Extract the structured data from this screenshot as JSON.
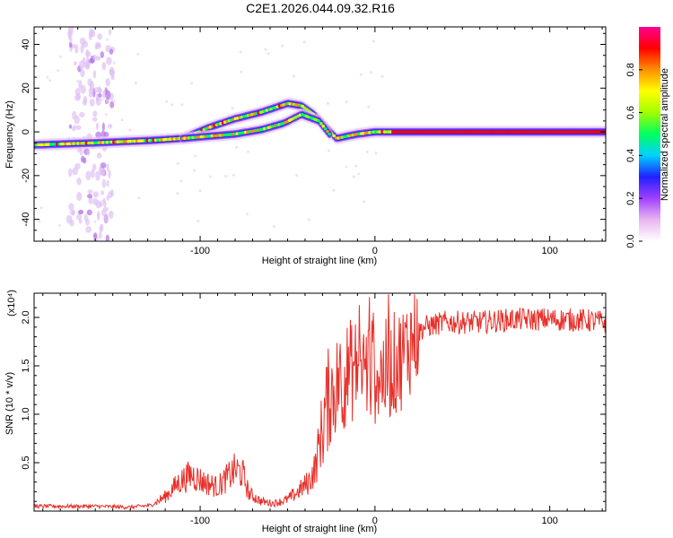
{
  "title": "C2E1.2026.044.09.32.R16",
  "chart_data": [
    {
      "type": "heatmap",
      "xlabel": "Height of straight line (km)",
      "ylabel": "Frequency (Hz)",
      "xlim": [
        -195,
        132
      ],
      "ylim": [
        -50,
        48
      ],
      "xticks": [
        -100,
        0,
        100
      ],
      "yticks": [
        -40,
        -20,
        0,
        20,
        40
      ],
      "colorbar": {
        "label": "Normalized spectral amplitude",
        "range": [
          0,
          1
        ],
        "ticks": [
          0.0,
          0.2,
          0.4,
          0.6,
          0.8
        ],
        "tick_labels": [
          "0.0",
          "0.2",
          "0.4",
          "0.6",
          "0.8"
        ],
        "colors": [
          "#ffffff",
          "#e8b6f0",
          "#a040ff",
          "#2020ff",
          "#00d0ff",
          "#00ff60",
          "#a0ff00",
          "#ffff00",
          "#ff9000",
          "#ff0000",
          "#ff0090"
        ]
      },
      "ridges": [
        {
          "name": "main",
          "points": [
            [
              -195,
              -6
            ],
            [
              -160,
              -5
            ],
            [
              -130,
              -4
            ],
            [
              -110,
              -3
            ],
            [
              -95,
              2
            ],
            [
              -80,
              6
            ],
            [
              -65,
              9
            ],
            [
              -50,
              13
            ],
            [
              -42,
              12
            ],
            [
              -35,
              8
            ],
            [
              -28,
              2
            ],
            [
              -22,
              -3
            ],
            [
              -10,
              -1
            ],
            [
              0,
              0
            ],
            [
              40,
              0
            ],
            [
              80,
              0
            ],
            [
              132,
              0
            ]
          ]
        },
        {
          "name": "lower-branch",
          "points": [
            [
              -110,
              -3
            ],
            [
              -95,
              -2
            ],
            [
              -80,
              -1
            ],
            [
              -65,
              1
            ],
            [
              -52,
              4
            ],
            [
              -42,
              8
            ],
            [
              -32,
              5
            ],
            [
              -25,
              -2
            ]
          ]
        }
      ],
      "noise_band": {
        "x": [
          -175,
          -150
        ],
        "y": [
          -50,
          48
        ]
      }
    },
    {
      "type": "line",
      "xlabel": "Height of straight line (km)",
      "ylabel": "SNR (10 * v/v)",
      "scale_label": "(x10⁴)",
      "xlim": [
        -195,
        132
      ],
      "ylim": [
        0,
        2.25
      ],
      "xticks": [
        -100,
        0,
        100
      ],
      "yticks": [
        0.5,
        1.0,
        1.5,
        2.0
      ],
      "ytick_labels": [
        "0.5",
        "1.0",
        "1.5",
        "2.0"
      ],
      "series": [
        {
          "color": "#e8302a",
          "envelope": [
            [
              -195,
              0.05
            ],
            [
              -180,
              0.05
            ],
            [
              -160,
              0.05
            ],
            [
              -140,
              0.04
            ],
            [
              -128,
              0.06
            ],
            [
              -120,
              0.15
            ],
            [
              -112,
              0.3
            ],
            [
              -105,
              0.38
            ],
            [
              -98,
              0.3
            ],
            [
              -90,
              0.25
            ],
            [
              -80,
              0.42
            ],
            [
              -76,
              0.4
            ],
            [
              -72,
              0.18
            ],
            [
              -65,
              0.1
            ],
            [
              -58,
              0.08
            ],
            [
              -50,
              0.12
            ],
            [
              -44,
              0.2
            ],
            [
              -38,
              0.3
            ],
            [
              -34,
              0.45
            ],
            [
              -30,
              0.9
            ],
            [
              -26,
              1.2
            ],
            [
              -20,
              1.35
            ],
            [
              -14,
              1.45
            ],
            [
              -8,
              1.5
            ],
            [
              -2,
              1.45
            ],
            [
              4,
              1.4
            ],
            [
              10,
              1.5
            ],
            [
              16,
              1.6
            ],
            [
              22,
              1.8
            ],
            [
              28,
              1.9
            ],
            [
              40,
              1.95
            ],
            [
              60,
              1.95
            ],
            [
              80,
              1.98
            ],
            [
              100,
              1.98
            ],
            [
              120,
              1.97
            ],
            [
              132,
              1.95
            ]
          ]
        }
      ]
    }
  ]
}
